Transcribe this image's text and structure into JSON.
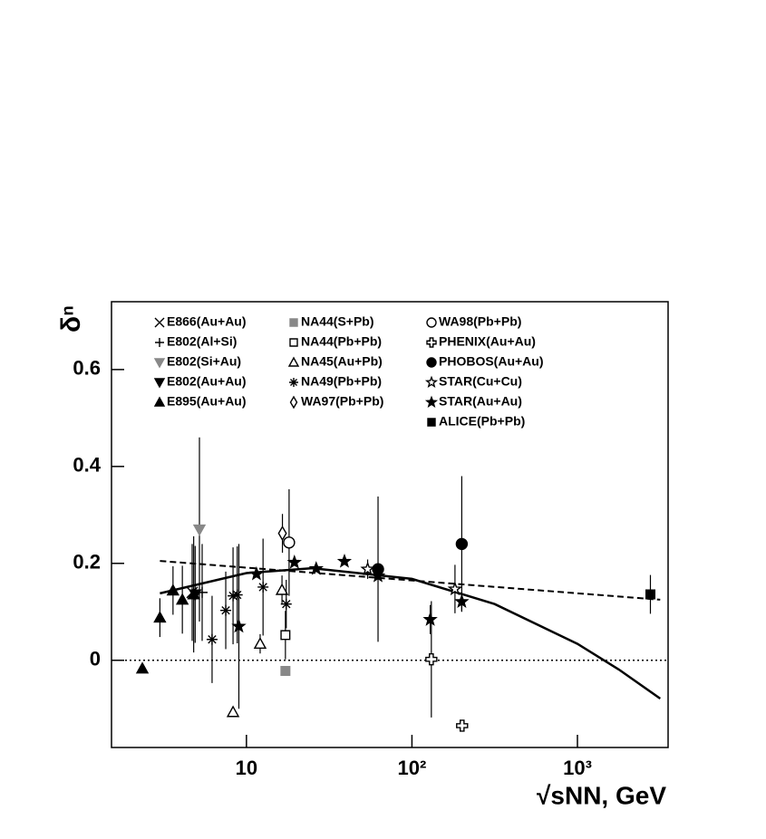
{
  "chart_data": {
    "type": "scatter",
    "x_label": "√sNN, GeV",
    "y_label": "δⁿ",
    "xlog": true,
    "xlim": [
      1.53,
      3530
    ],
    "ylim": [
      -0.18,
      0.74
    ],
    "xticks": [
      {
        "value": 10,
        "label": "10"
      },
      {
        "value": 100,
        "label": "10²"
      },
      {
        "value": 1000,
        "label": "10³"
      }
    ],
    "yticks": [
      0,
      0.2,
      0.4,
      0.6
    ],
    "reference_line": 0,
    "series": [
      {
        "name": "E866(Au+Au)",
        "marker": "x",
        "color": "#000000",
        "x": [
          4.7
        ],
        "values": [
          0.14
        ],
        "errors": [
          0.1
        ]
      },
      {
        "name": "E802(Al+Si)",
        "marker": "plus",
        "color": "#000000",
        "x": [
          5.4
        ],
        "values": [
          0.14
        ],
        "errors": [
          0.1
        ]
      },
      {
        "name": "E802(Si+Au)",
        "marker": "tri-down",
        "color": "#888888",
        "x": [
          5.2
        ],
        "values": [
          0.27
        ],
        "errors": [
          0.19
        ]
      },
      {
        "name": "E802(Au+Au)",
        "marker": "tri-down",
        "color": "#000000",
        "x": [
          4.9
        ],
        "values": [
          0.136
        ],
        "errors": [
          0.1
        ]
      },
      {
        "name": "E895(Au+Au)",
        "marker": "tri-up",
        "color": "#000000",
        "x": [
          2.35,
          3.0,
          3.6,
          4.1,
          4.8
        ],
        "values": [
          -0.017,
          0.088,
          0.144,
          0.125,
          0.136
        ],
        "errors": [
          0,
          0.04,
          0.05,
          0.07,
          0.12
        ]
      },
      {
        "name": "NA44(S+Pb)",
        "marker": "square",
        "color": "#888888",
        "x": [
          17.2
        ],
        "values": [
          -0.022
        ],
        "errors": [
          0
        ]
      },
      {
        "name": "NA44(Pb+Pb)",
        "marker": "square-open",
        "color": "#000000",
        "x": [
          17.2
        ],
        "values": [
          0.052
        ],
        "errors": [
          0.05
        ]
      },
      {
        "name": "NA45(Au+Pb)",
        "marker": "tri-up-open",
        "color": "#000000",
        "x": [
          8.3,
          12.1,
          16.4
        ],
        "values": [
          -0.107,
          0.034,
          0.145
        ],
        "errors": [
          0,
          0.02,
          0.03
        ]
      },
      {
        "name": "NA49(Pb+Pb)",
        "marker": "asterisk",
        "color": "#000000",
        "x": [
          6.2,
          7.5,
          8.3,
          8.8,
          12.6,
          17.4
        ],
        "values": [
          0.043,
          0.103,
          0.133,
          0.135,
          0.151,
          0.116
        ],
        "errors": [
          0.09,
          0.08,
          0.1,
          0.1,
          0.1,
          0.05
        ]
      },
      {
        "name": "WA97(Pb+Pb)",
        "marker": "diamond-open",
        "color": "#000000",
        "x": [
          16.5
        ],
        "values": [
          0.262
        ],
        "errors": [
          0.04
        ]
      },
      {
        "name": "WA98(Pb+Pb)",
        "marker": "circle-open",
        "color": "#000000",
        "x": [
          18.1
        ],
        "values": [
          0.243
        ],
        "errors": [
          0.11
        ]
      },
      {
        "name": "PHENIX(Au+Au)",
        "marker": "cross-open",
        "color": "#000000",
        "x": [
          131,
          201
        ],
        "values": [
          0.002,
          -0.135
        ],
        "errors": [
          0.12,
          0
        ]
      },
      {
        "name": "PHOBOS(Au+Au)",
        "marker": "circle",
        "color": "#000000",
        "x": [
          62.4,
          200
        ],
        "values": [
          0.188,
          0.24
        ],
        "errors": [
          0.15,
          0.14
        ]
      },
      {
        "name": "STAR(Cu+Cu)",
        "marker": "star-open",
        "color": "#000000",
        "x": [
          54,
          182
        ],
        "values": [
          0.188,
          0.147
        ],
        "errors": [
          0.02,
          0.05
        ]
      },
      {
        "name": "STAR(Au+Au)",
        "marker": "star",
        "color": "#000000",
        "x": [
          9.0,
          11.5,
          19.5,
          26.4,
          39.1,
          62.4,
          129,
          200
        ],
        "values": [
          0.07,
          0.178,
          0.202,
          0.189,
          0.204,
          0.174,
          0.084,
          0.121
        ],
        "errors": [
          0.17,
          0,
          0,
          0,
          0,
          0,
          0.03,
          0.02
        ]
      },
      {
        "name": "ALICE(Pb+Pb)",
        "marker": "square",
        "color": "#000000",
        "x": [
          2760
        ],
        "values": [
          0.136
        ],
        "errors": [
          0.04
        ]
      }
    ],
    "curves": [
      {
        "style": "solid",
        "x": [
          3,
          10,
          25,
          100,
          316,
          1000,
          1778,
          3162
        ],
        "values": [
          0.138,
          0.18,
          0.19,
          0.168,
          0.116,
          0.034,
          -0.019,
          -0.079
        ]
      },
      {
        "style": "dashed",
        "x": [
          3,
          3162
        ],
        "values": [
          0.205,
          0.125
        ]
      }
    ]
  }
}
